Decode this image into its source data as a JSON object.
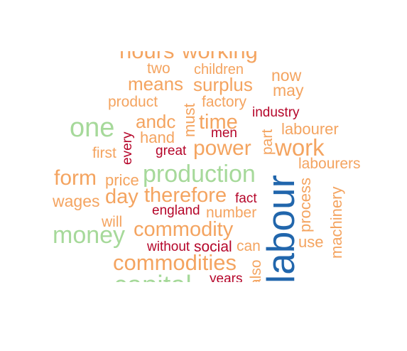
{
  "colors": {
    "light_orange": "#f4a460",
    "green": "#a6d99a",
    "dark_red": "#b5062a",
    "blue": "#2166ac"
  },
  "words": [
    {
      "id": "hours",
      "text": "hours",
      "color": "light_orange"
    },
    {
      "id": "working",
      "text": "working",
      "color": "light_orange"
    },
    {
      "id": "two",
      "text": "two",
      "color": "light_orange"
    },
    {
      "id": "children",
      "text": "children",
      "color": "light_orange"
    },
    {
      "id": "now",
      "text": "now",
      "color": "light_orange"
    },
    {
      "id": "means",
      "text": "means",
      "color": "light_orange"
    },
    {
      "id": "surplus",
      "text": "surplus",
      "color": "light_orange"
    },
    {
      "id": "may",
      "text": "may",
      "color": "light_orange"
    },
    {
      "id": "product",
      "text": "product",
      "color": "light_orange"
    },
    {
      "id": "factory",
      "text": "factory",
      "color": "light_orange"
    },
    {
      "id": "industry",
      "text": "industry",
      "color": "dark_red"
    },
    {
      "id": "one",
      "text": "one",
      "color": "green"
    },
    {
      "id": "andc",
      "text": "andc",
      "color": "light_orange"
    },
    {
      "id": "must",
      "text": "must",
      "color": "light_orange"
    },
    {
      "id": "time",
      "text": "time",
      "color": "light_orange"
    },
    {
      "id": "labourer",
      "text": "labourer",
      "color": "light_orange"
    },
    {
      "id": "men",
      "text": "men",
      "color": "dark_red"
    },
    {
      "id": "every",
      "text": "every",
      "color": "dark_red"
    },
    {
      "id": "hand",
      "text": "hand",
      "color": "light_orange"
    },
    {
      "id": "part",
      "text": "part",
      "color": "light_orange"
    },
    {
      "id": "first",
      "text": "first",
      "color": "light_orange"
    },
    {
      "id": "great",
      "text": "great",
      "color": "dark_red"
    },
    {
      "id": "power",
      "text": "power",
      "color": "light_orange"
    },
    {
      "id": "work",
      "text": "work",
      "color": "light_orange"
    },
    {
      "id": "labour",
      "text": "labour",
      "color": "blue"
    },
    {
      "id": "labourers",
      "text": "labourers",
      "color": "light_orange"
    },
    {
      "id": "form",
      "text": "form",
      "color": "light_orange"
    },
    {
      "id": "price",
      "text": "price",
      "color": "light_orange"
    },
    {
      "id": "production",
      "text": "production",
      "color": "green"
    },
    {
      "id": "day",
      "text": "day",
      "color": "light_orange"
    },
    {
      "id": "therefore",
      "text": "therefore",
      "color": "light_orange"
    },
    {
      "id": "fact",
      "text": "fact",
      "color": "dark_red"
    },
    {
      "id": "process",
      "text": "process",
      "color": "light_orange"
    },
    {
      "id": "machinery",
      "text": "machinery",
      "color": "light_orange"
    },
    {
      "id": "wages",
      "text": "wages",
      "color": "light_orange"
    },
    {
      "id": "england",
      "text": "england",
      "color": "dark_red"
    },
    {
      "id": "number",
      "text": "number",
      "color": "light_orange"
    },
    {
      "id": "will",
      "text": "will",
      "color": "light_orange"
    },
    {
      "id": "money",
      "text": "money",
      "color": "green"
    },
    {
      "id": "commodity",
      "text": "commodity",
      "color": "light_orange"
    },
    {
      "id": "use",
      "text": "use",
      "color": "light_orange"
    },
    {
      "id": "without",
      "text": "without",
      "color": "dark_red"
    },
    {
      "id": "social",
      "text": "social",
      "color": "dark_red"
    },
    {
      "id": "can",
      "text": "can",
      "color": "light_orange"
    },
    {
      "id": "commodities",
      "text": "commodities",
      "color": "light_orange"
    },
    {
      "id": "also",
      "text": "also",
      "color": "light_orange"
    },
    {
      "id": "capital",
      "text": "capital",
      "color": "green"
    },
    {
      "id": "years",
      "text": "years",
      "color": "dark_red"
    }
  ]
}
